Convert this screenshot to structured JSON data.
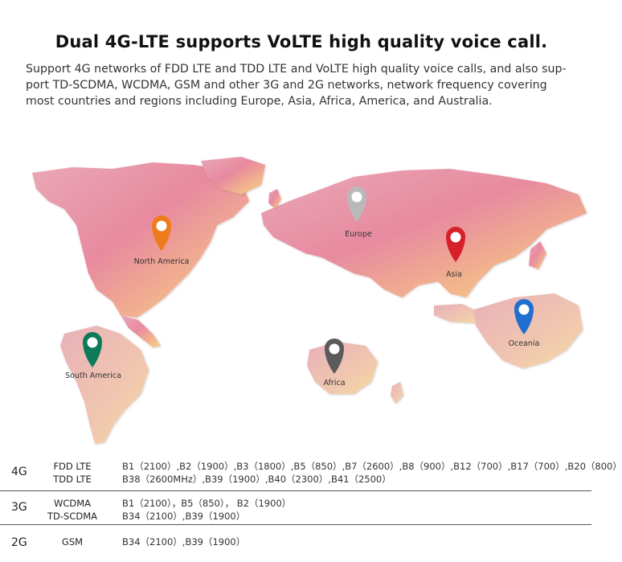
{
  "header": {
    "title": "Dual 4G-LTE supports VoLTE high quality voice call.",
    "description": "Support 4G networks of FDD LTE and TDD LTE and VoLTE high quality voice calls, and also sup-port TD-SCDMA, WCDMA, GSM and other 3G and 2G networks, network frequency covering most countries and regions including Europe, Asia, Africa, America, and Australia."
  },
  "map": {
    "pins": [
      {
        "label": "North America",
        "color": "#f07b1c"
      },
      {
        "label": "Europe",
        "color": "#b9b9b9"
      },
      {
        "label": "Asia",
        "color": "#d6202b"
      },
      {
        "label": "South America",
        "color": "#0f7a5a"
      },
      {
        "label": "Africa",
        "color": "#5b5b5b"
      },
      {
        "label": "Oceania",
        "color": "#1e6fd0"
      }
    ]
  },
  "bands": [
    {
      "gen": "4G",
      "tech": [
        "FDD LTE",
        "TDD LTE"
      ],
      "freq": [
        "B1（2100）,B2（1900）,B3（1800）,B5（850）,B7（2600）,B8（900）,B12（700）,B17（700）,B20（800）",
        "B38（2600MHz）,B39（1900）,B40（2300）,B41（2500）"
      ]
    },
    {
      "gen": "3G",
      "tech": [
        "WCDMA",
        "TD-SCDMA"
      ],
      "freq": [
        "B1（2100），B5（850）， B2（1900）",
        "B34（2100）,B39（1900）"
      ]
    },
    {
      "gen": "2G",
      "tech": [
        "GSM"
      ],
      "freq": [
        "B34（2100）,B39（1900）"
      ]
    }
  ]
}
